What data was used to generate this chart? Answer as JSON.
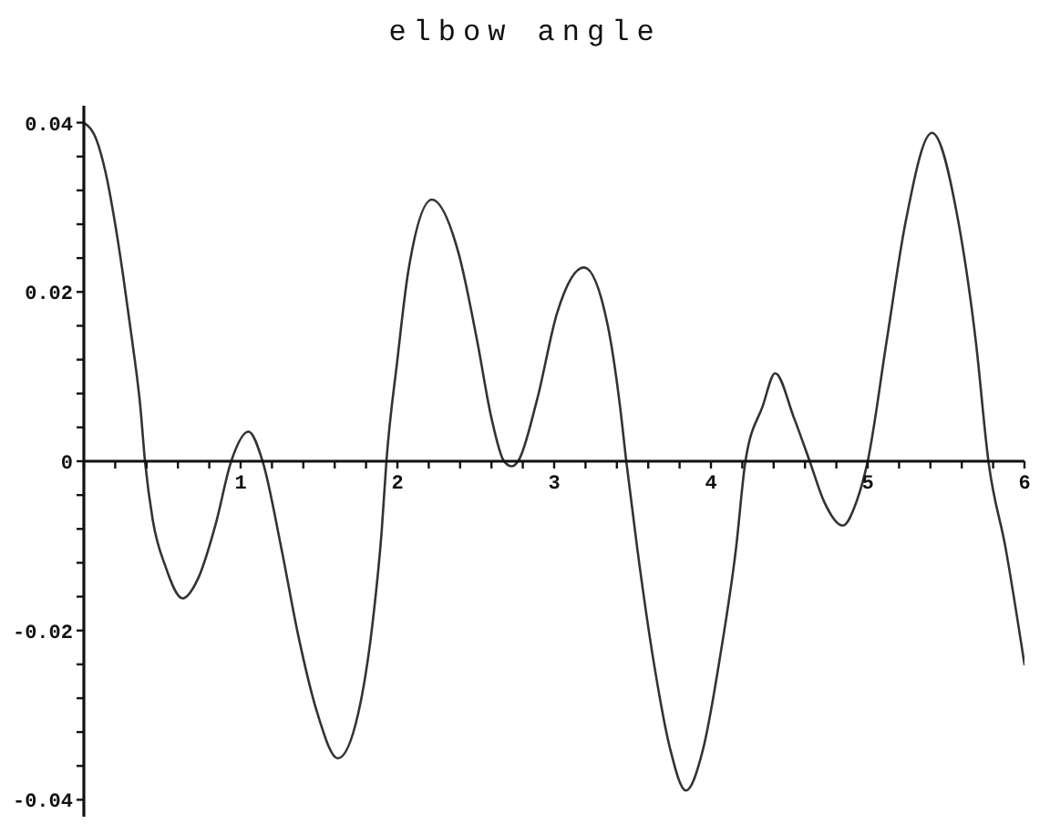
{
  "chart_data": {
    "type": "line",
    "title": "elbow angle",
    "x": [
      0,
      0.08,
      0.14,
      0.2,
      0.25,
      0.31,
      0.36,
      0.39,
      0.44,
      0.52,
      0.63,
      0.73,
      0.84,
      0.94,
      1.05,
      1.14,
      1.26,
      1.37,
      1.49,
      1.62,
      1.75,
      1.84,
      1.9,
      1.93,
      2.0,
      2.07,
      2.22,
      2.39,
      2.51,
      2.6,
      2.68,
      2.73,
      2.77,
      2.89,
      3.02,
      3.19,
      3.34,
      3.42,
      3.46,
      3.53,
      3.64,
      3.74,
      3.84,
      3.95,
      4.06,
      4.16,
      4.22,
      4.33,
      4.41,
      4.53,
      4.63,
      4.72,
      4.84,
      4.93,
      5.0,
      5.12,
      5.24,
      5.41,
      5.58,
      5.69,
      5.77,
      5.88,
      6.0
    ],
    "series": [
      {
        "color": "#333333",
        "values": [
          0.04,
          0.038,
          0.034,
          0.028,
          0.022,
          0.014,
          0.0065,
          0,
          -0.007,
          -0.0124,
          -0.0162,
          -0.0138,
          -0.0075,
          0,
          0.0035,
          0,
          -0.0103,
          -0.0208,
          -0.0298,
          -0.0351,
          -0.0298,
          -0.0194,
          -0.0082,
          0,
          0.012,
          0.0225,
          0.0309,
          0.0246,
          0.0141,
          0.0051,
          0,
          -0.0006,
          0,
          0.0072,
          0.0176,
          0.0229,
          0.0162,
          0.0065,
          0,
          -0.0103,
          -0.0243,
          -0.034,
          -0.0389,
          -0.034,
          -0.0229,
          -0.0103,
          0,
          0.0065,
          0.0104,
          0.0051,
          0,
          -0.0047,
          -0.0076,
          -0.0047,
          0,
          0.0141,
          0.0281,
          0.0388,
          0.0281,
          0.0141,
          0,
          -0.0103,
          -0.024
        ]
      }
    ],
    "xlim": [
      0,
      6
    ],
    "ylim": [
      -0.042,
      0.042
    ],
    "xticks": [
      {
        "value": 0,
        "label": null
      },
      {
        "value": 0.2,
        "label": null
      },
      {
        "value": 0.4,
        "label": null
      },
      {
        "value": 0.6,
        "label": null
      },
      {
        "value": 0.8,
        "label": null
      },
      1,
      {
        "value": 1.2,
        "label": null
      },
      {
        "value": 1.4,
        "label": null
      },
      {
        "value": 1.6,
        "label": null
      },
      {
        "value": 1.8,
        "label": null
      },
      2,
      {
        "value": 2.2,
        "label": null
      },
      {
        "value": 2.4,
        "label": null
      },
      {
        "value": 2.6,
        "label": null
      },
      {
        "value": 2.8,
        "label": null
      },
      3,
      {
        "value": 3.2,
        "label": null
      },
      {
        "value": 3.4,
        "label": null
      },
      {
        "value": 3.6,
        "label": null
      },
      {
        "value": 3.8,
        "label": null
      },
      4,
      {
        "value": 4.2,
        "label": null
      },
      {
        "value": 4.4,
        "label": null
      },
      {
        "value": 4.6,
        "label": null
      },
      {
        "value": 4.8,
        "label": null
      },
      5,
      {
        "value": 5.2,
        "label": null
      },
      {
        "value": 5.4,
        "label": null
      },
      {
        "value": 5.6,
        "label": null
      },
      {
        "value": 5.8,
        "label": null
      },
      6
    ],
    "yticks": [
      -0.04,
      {
        "value": -0.036,
        "label": null
      },
      {
        "value": -0.032,
        "label": null
      },
      {
        "value": -0.028,
        "label": null
      },
      {
        "value": -0.024,
        "label": null
      },
      -0.02,
      {
        "value": -0.016,
        "label": null
      },
      {
        "value": -0.012,
        "label": null
      },
      {
        "value": -0.008,
        "label": null
      },
      {
        "value": -0.004,
        "label": null
      },
      0,
      {
        "value": 0.004,
        "label": null
      },
      {
        "value": 0.008,
        "label": null
      },
      {
        "value": 0.012,
        "label": null
      },
      {
        "value": 0.016,
        "label": null
      },
      0.02,
      {
        "value": 0.024,
        "label": null
      },
      {
        "value": 0.028,
        "label": null
      },
      {
        "value": 0.032,
        "label": null
      },
      {
        "value": 0.036,
        "label": null
      },
      0.04
    ],
    "marker": "none",
    "line_style": "solid"
  }
}
